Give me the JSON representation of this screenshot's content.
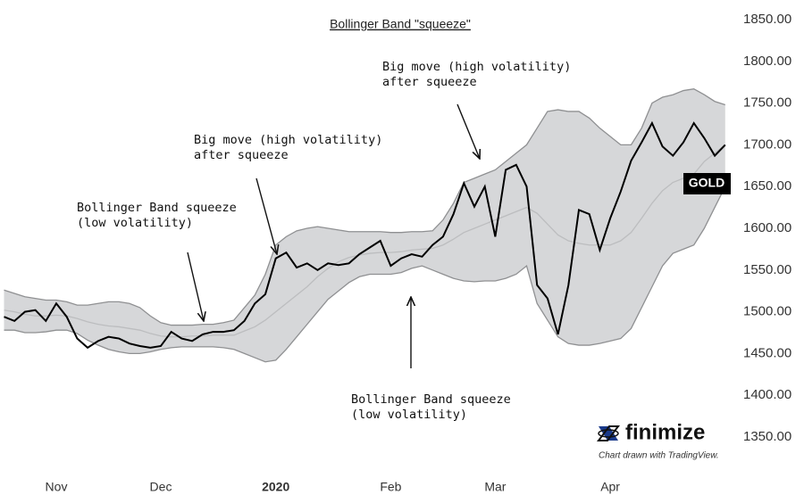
{
  "chart_data": {
    "type": "line",
    "title": "Bollinger Band \"squeeze\"",
    "categories": [
      null,
      null,
      null,
      null,
      null,
      "Nov",
      null,
      null,
      null,
      null,
      null,
      null,
      null,
      null,
      null,
      "Dec",
      null,
      null,
      null,
      null,
      null,
      null,
      null,
      null,
      null,
      null,
      "2020",
      null,
      null,
      null,
      null,
      null,
      null,
      null,
      null,
      null,
      null,
      "Feb",
      null,
      null,
      null,
      null,
      null,
      null,
      null,
      null,
      null,
      "Mar",
      null,
      null,
      null,
      null,
      null,
      null,
      null,
      null,
      null,
      null,
      "Apr",
      null,
      null,
      null,
      null,
      null,
      null,
      null,
      null,
      null,
      null,
      null
    ],
    "series": [
      {
        "name": "GOLD",
        "color": "#000000",
        "values": [
          1494,
          1489,
          1500,
          1502,
          1489,
          1510,
          1494,
          1468,
          1457,
          1465,
          1470,
          1468,
          1462,
          1459,
          1457,
          1459,
          1476,
          1468,
          1465,
          1473,
          1476,
          1476,
          1478,
          1489,
          1510,
          1521,
          1564,
          1571,
          1553,
          1558,
          1550,
          1558,
          1556,
          1558,
          1569,
          1577,
          1585,
          1555,
          1564,
          1569,
          1566,
          1580,
          1590,
          1617,
          1654,
          1626,
          1650,
          1590,
          1670,
          1676,
          1650,
          1532,
          1516,
          1473,
          1532,
          1622,
          1617,
          1574,
          1612,
          1644,
          1681,
          1703,
          1726,
          1698,
          1687,
          1703,
          1726,
          1708,
          1687,
          1700
        ]
      },
      {
        "color": "#8f9092",
        "values": [
          1526,
          1522,
          1518,
          1516,
          1514,
          1514,
          1512,
          1508,
          1508,
          1510,
          1512,
          1512,
          1510,
          1505,
          1495,
          1487,
          1484,
          1484,
          1484,
          1485,
          1485,
          1487,
          1490,
          1505,
          1520,
          1545,
          1580,
          1590,
          1597,
          1600,
          1602,
          1600,
          1598,
          1596,
          1596,
          1596,
          1596,
          1595,
          1595,
          1596,
          1596,
          1597,
          1610,
          1630,
          1655,
          1660,
          1665,
          1670,
          1680,
          1690,
          1700,
          1720,
          1740,
          1742,
          1740,
          1740,
          1732,
          1720,
          1710,
          1700,
          1700,
          1720,
          1750,
          1757,
          1760,
          1765,
          1767,
          1760,
          1752,
          1748
        ]
      },
      {
        "color": "#bcbdbf",
        "values": [
          1502,
          1500,
          1497,
          1495,
          1495,
          1496,
          1495,
          1492,
          1488,
          1485,
          1483,
          1482,
          1480,
          1478,
          1474,
          1471,
          1470,
          1470,
          1471,
          1471,
          1472,
          1472,
          1472,
          1477,
          1482,
          1490,
          1500,
          1510,
          1520,
          1530,
          1542,
          1552,
          1560,
          1565,
          1568,
          1570,
          1571,
          1571,
          1572,
          1574,
          1575,
          1576,
          1580,
          1587,
          1595,
          1600,
          1605,
          1610,
          1615,
          1620,
          1625,
          1618,
          1605,
          1592,
          1585,
          1582,
          1580,
          1580,
          1580,
          1585,
          1595,
          1612,
          1630,
          1645,
          1655,
          1660,
          1665,
          1680,
          1690,
          1700
        ]
      },
      {
        "color": "#8f9092",
        "values": [
          1478,
          1478,
          1475,
          1475,
          1476,
          1478,
          1478,
          1474,
          1466,
          1460,
          1455,
          1452,
          1450,
          1450,
          1452,
          1455,
          1457,
          1458,
          1458,
          1458,
          1458,
          1457,
          1455,
          1450,
          1445,
          1440,
          1442,
          1455,
          1470,
          1485,
          1500,
          1515,
          1525,
          1535,
          1542,
          1545,
          1545,
          1545,
          1547,
          1552,
          1555,
          1550,
          1545,
          1540,
          1537,
          1536,
          1537,
          1537,
          1540,
          1545,
          1555,
          1510,
          1490,
          1470,
          1462,
          1460,
          1460,
          1462,
          1465,
          1468,
          1480,
          1505,
          1530,
          1555,
          1570,
          1575,
          1580,
          1600,
          1625,
          1650
        ]
      }
    ],
    "band_fill": "#d6d7d9",
    "ylim": [
      1350,
      1850
    ],
    "yticks": [
      {
        "value": 1350,
        "label": "1350.00"
      },
      {
        "value": 1400,
        "label": "1400.00"
      },
      {
        "value": 1450,
        "label": "1450.00"
      },
      {
        "value": 1500,
        "label": "1500.00"
      },
      {
        "value": 1550,
        "label": "1550.00"
      },
      {
        "value": 1600,
        "label": "1600.00"
      },
      {
        "value": 1650,
        "label": "1650.00"
      },
      {
        "value": 1700,
        "label": "1700.00"
      },
      {
        "value": 1750,
        "label": "1750.00"
      },
      {
        "value": 1800,
        "label": "1800.00"
      },
      {
        "value": 1850,
        "label": "1850.00"
      }
    ],
    "annotations": [
      [
        "Bollinger Band squeeze",
        "(low volatility)"
      ],
      [
        "Big move (high volatility)",
        "after squeeze"
      ],
      [
        "Big move (high volatility)",
        "after squeeze"
      ],
      [
        "Bollinger Band squeeze",
        "(low volatility)"
      ]
    ],
    "brand": "finimize",
    "credit": "Chart drawn with TradingView."
  }
}
